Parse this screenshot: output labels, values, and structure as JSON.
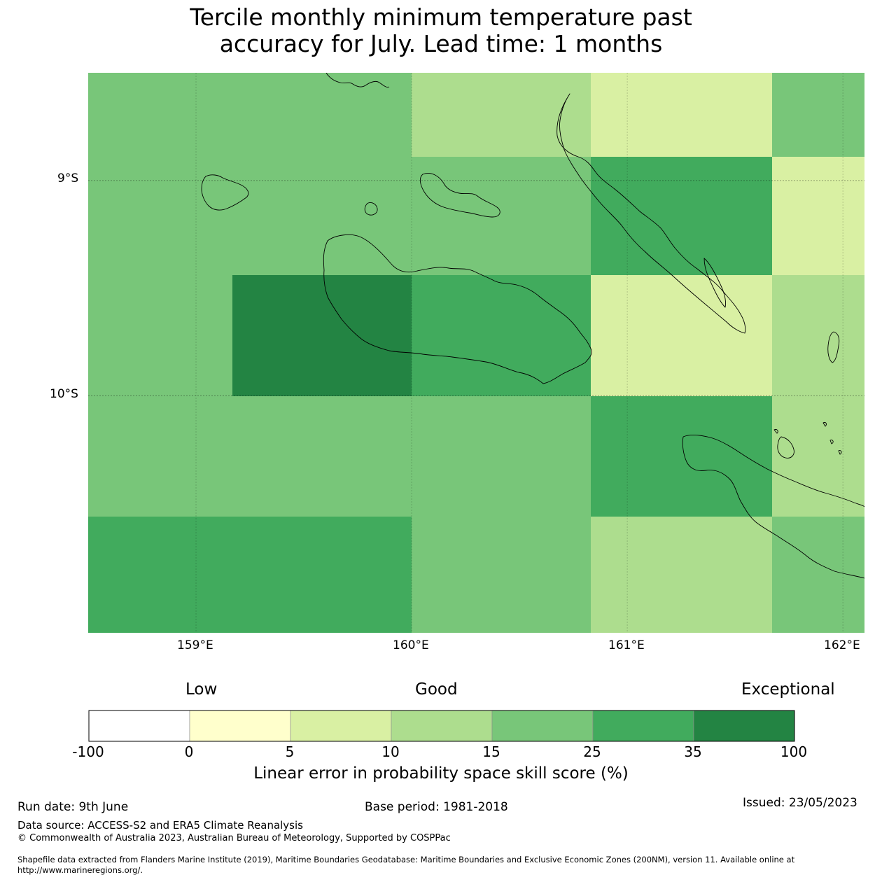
{
  "title": {
    "line1": "Tercile monthly minimum temperature past",
    "line2": "accuracy for July. Lead time: 1 months"
  },
  "map": {
    "lat_labels": [
      "9°S",
      "10°S"
    ],
    "lon_labels": [
      "159°E",
      "160°E",
      "161°E",
      "162°E"
    ],
    "extent": {
      "lon_min": 158.5,
      "lon_max": 162.1,
      "lat_min": -11.1,
      "lat_max": -8.5
    },
    "grid_lon_edges": [
      158.5,
      159.17,
      160.0,
      160.83,
      161.67,
      162.1
    ],
    "grid_lat_edges": [
      -8.5,
      -8.89,
      -9.44,
      -10.0,
      -10.56,
      -11.1
    ],
    "cells": [
      [
        25,
        25,
        15,
        10,
        25
      ],
      [
        25,
        25,
        25,
        35,
        10
      ],
      [
        25,
        100,
        35,
        10,
        15
      ],
      [
        25,
        25,
        25,
        35,
        15
      ],
      [
        35,
        35,
        25,
        15,
        25
      ]
    ]
  },
  "colorbar": {
    "category_labels": [
      "Low",
      "Good",
      "Exceptional"
    ],
    "ticks": [
      "-100",
      "0",
      "5",
      "10",
      "15",
      "25",
      "35",
      "100"
    ],
    "colors": [
      "#ffffff",
      "#ffffcc",
      "#d9f0a3",
      "#addd8e",
      "#78c679",
      "#41ab5d",
      "#238443"
    ],
    "title": "Linear error in probability space skill score (%)"
  },
  "footer": {
    "run_date": "Run date: 9th June",
    "base_period": "Base period: 1981-2018",
    "issued": "Issued: 23/05/2023",
    "data_source": "Data source: ACCESS-S2 and ERA5 Climate Reanalysis",
    "copyright": "© Commonwealth of Australia 2023, Australian Bureau of Meteorology, Supported by COSPPac",
    "shapefile_line1": "Shapefile data extracted from Flanders Marine Institute (2019), Maritime Boundaries Geodatabase: Maritime Boundaries and Exclusive Economic Zones (200NM), version 11. Available online at",
    "shapefile_line2": "http://www.marineregions.org/."
  }
}
